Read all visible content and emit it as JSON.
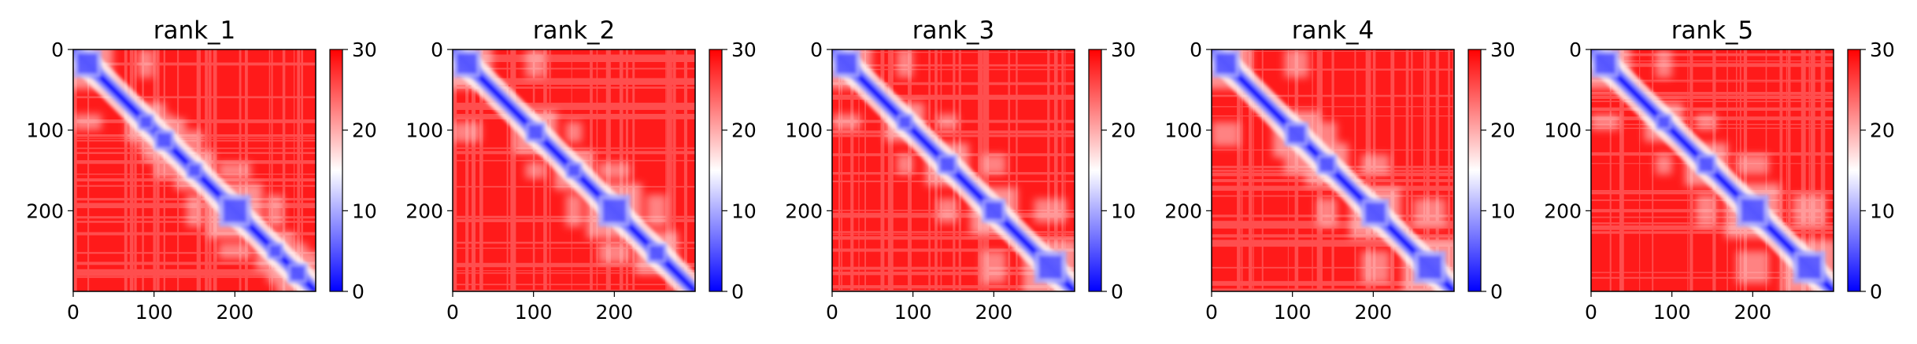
{
  "chart_data": [
    {
      "type": "heatmap",
      "title": "rank_1",
      "size": 300,
      "xlim": [
        0,
        300
      ],
      "ylim": [
        300,
        0
      ],
      "xticks": [
        0,
        100,
        200
      ],
      "yticks": [
        0,
        100,
        200
      ],
      "colorbar": {
        "range": [
          0,
          30
        ],
        "ticks": [
          0,
          10,
          20,
          30
        ],
        "colors": [
          "#0000ff",
          "#ffffff",
          "#ff0000"
        ]
      },
      "diagonal_blocks": [
        [
          0,
          35
        ],
        [
          80,
          100
        ],
        [
          100,
          125
        ],
        [
          140,
          160
        ],
        [
          180,
          220
        ],
        [
          240,
          260
        ],
        [
          265,
          290
        ]
      ]
    },
    {
      "type": "heatmap",
      "title": "rank_2",
      "size": 300,
      "xlim": [
        0,
        300
      ],
      "ylim": [
        300,
        0
      ],
      "xticks": [
        0,
        100,
        200
      ],
      "yticks": [
        0,
        100,
        200
      ],
      "colorbar": {
        "range": [
          0,
          30
        ],
        "ticks": [
          0,
          10,
          20,
          30
        ],
        "colors": [
          "#0000ff",
          "#ffffff",
          "#ff0000"
        ]
      },
      "diagonal_blocks": [
        [
          0,
          35
        ],
        [
          90,
          115
        ],
        [
          140,
          160
        ],
        [
          180,
          220
        ],
        [
          240,
          265
        ]
      ]
    },
    {
      "type": "heatmap",
      "title": "rank_3",
      "size": 300,
      "xlim": [
        0,
        300
      ],
      "ylim": [
        300,
        0
      ],
      "xticks": [
        0,
        100,
        200
      ],
      "yticks": [
        0,
        100,
        200
      ],
      "colorbar": {
        "range": [
          0,
          30
        ],
        "ticks": [
          0,
          10,
          20,
          30
        ],
        "colors": [
          "#0000ff",
          "#ffffff",
          "#ff0000"
        ]
      },
      "diagonal_blocks": [
        [
          0,
          35
        ],
        [
          80,
          100
        ],
        [
          130,
          155
        ],
        [
          185,
          215
        ],
        [
          250,
          290
        ]
      ]
    },
    {
      "type": "heatmap",
      "title": "rank_4",
      "size": 300,
      "xlim": [
        0,
        300
      ],
      "ylim": [
        300,
        0
      ],
      "xticks": [
        0,
        100,
        200
      ],
      "yticks": [
        0,
        100,
        200
      ],
      "colorbar": {
        "range": [
          0,
          30
        ],
        "ticks": [
          0,
          10,
          20,
          30
        ],
        "colors": [
          "#0000ff",
          "#ffffff",
          "#ff0000"
        ]
      },
      "diagonal_blocks": [
        [
          0,
          35
        ],
        [
          90,
          120
        ],
        [
          130,
          155
        ],
        [
          185,
          220
        ],
        [
          250,
          290
        ]
      ]
    },
    {
      "type": "heatmap",
      "title": "rank_5",
      "size": 300,
      "xlim": [
        0,
        300
      ],
      "ylim": [
        300,
        0
      ],
      "xticks": [
        0,
        100,
        200
      ],
      "yticks": [
        0,
        100,
        200
      ],
      "colorbar": {
        "range": [
          0,
          30
        ],
        "ticks": [
          0,
          10,
          20,
          30
        ],
        "colors": [
          "#0000ff",
          "#ffffff",
          "#ff0000"
        ]
      },
      "diagonal_blocks": [
        [
          0,
          35
        ],
        [
          80,
          100
        ],
        [
          130,
          155
        ],
        [
          180,
          220
        ],
        [
          250,
          290
        ]
      ]
    }
  ]
}
